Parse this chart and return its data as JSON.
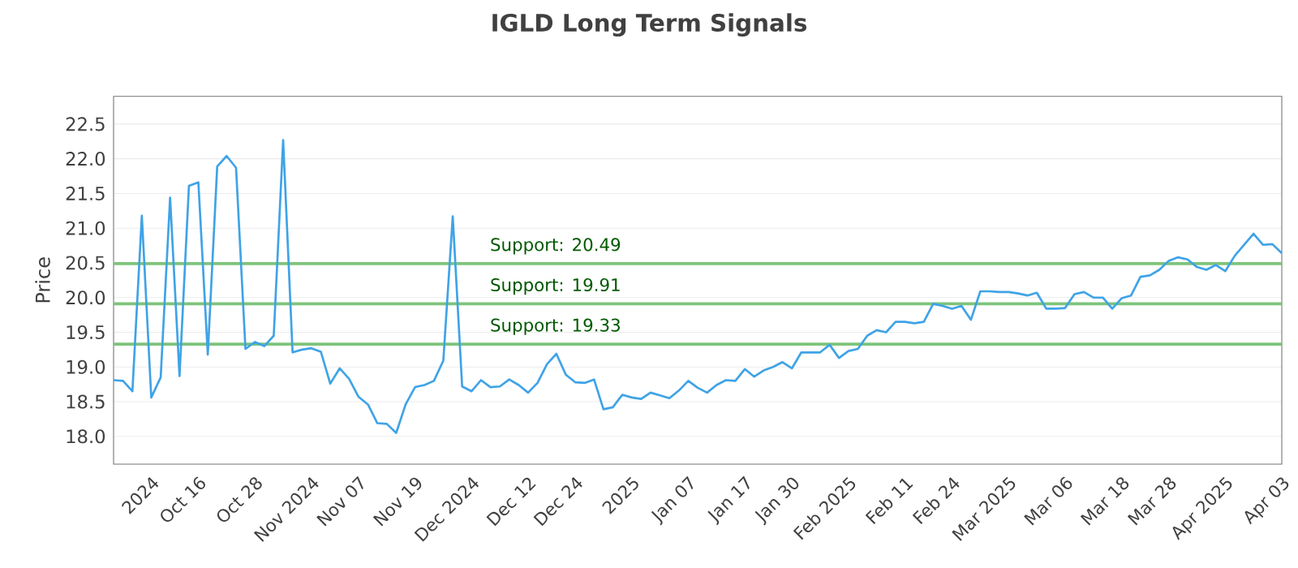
{
  "chart_data": {
    "type": "line",
    "title": "IGLD Long Term Signals",
    "ylabel": "Price",
    "categories": [
      null,
      null,
      null,
      null,
      "2024",
      null,
      null,
      null,
      null,
      "Oct 16",
      null,
      null,
      null,
      null,
      null,
      "Oct 28",
      null,
      null,
      null,
      null,
      null,
      "Nov 2024",
      null,
      null,
      null,
      null,
      "Nov 07",
      null,
      null,
      null,
      null,
      null,
      "Nov 19",
      null,
      null,
      null,
      null,
      null,
      "Dec 2024",
      null,
      null,
      null,
      null,
      null,
      "Dec 12",
      null,
      null,
      null,
      null,
      "Dec 24",
      null,
      null,
      null,
      null,
      null,
      "2025",
      null,
      null,
      null,
      null,
      null,
      "Jan 07",
      null,
      null,
      null,
      null,
      null,
      "Jan 17",
      null,
      null,
      null,
      null,
      "Jan 30",
      null,
      null,
      null,
      null,
      null,
      "Feb 2025",
      null,
      null,
      null,
      null,
      null,
      "Feb 11",
      null,
      null,
      null,
      null,
      "Feb 24",
      null,
      null,
      null,
      null,
      null,
      "Mar 2025",
      null,
      null,
      null,
      null,
      null,
      "Mar 06",
      null,
      null,
      null,
      null,
      null,
      "Mar 18",
      null,
      null,
      null,
      null,
      "Mar 28",
      null,
      null,
      null,
      null,
      null,
      "Apr 2025",
      null,
      null,
      null,
      null,
      null,
      "Apr 03"
    ],
    "series": [
      {
        "color": "#3fa3e6",
        "values": [
          18.81,
          18.8,
          18.65,
          21.18,
          18.56,
          18.85,
          21.44,
          18.87,
          21.61,
          21.66,
          19.18,
          21.89,
          22.04,
          21.87,
          19.26,
          19.36,
          19.3,
          19.45,
          22.27,
          19.21,
          19.25,
          19.27,
          19.22,
          18.76,
          18.98,
          18.83,
          18.57,
          18.46,
          18.19,
          18.18,
          18.05,
          18.46,
          18.71,
          18.74,
          18.8,
          19.09,
          21.17,
          18.72,
          18.65,
          18.81,
          18.71,
          18.72,
          18.82,
          18.74,
          18.63,
          18.77,
          19.04,
          19.19,
          18.89,
          18.78,
          18.77,
          18.82,
          18.39,
          18.42,
          18.6,
          18.56,
          18.54,
          18.63,
          18.59,
          18.55,
          18.66,
          18.8,
          18.7,
          18.63,
          18.74,
          18.81,
          18.8,
          18.97,
          18.86,
          18.95,
          19.0,
          19.07,
          18.98,
          19.21,
          19.21,
          19.21,
          19.32,
          19.13,
          19.23,
          19.26,
          19.45,
          19.53,
          19.5,
          19.65,
          19.65,
          19.63,
          19.65,
          19.91,
          19.88,
          19.84,
          19.88,
          19.68,
          20.09,
          20.09,
          20.08,
          20.08,
          20.06,
          20.03,
          20.07,
          19.84,
          19.84,
          19.85,
          20.05,
          20.08,
          20.0,
          20.0,
          19.84,
          19.99,
          20.03,
          20.3,
          20.32,
          20.4,
          20.53,
          20.58,
          20.55,
          20.44,
          20.4,
          20.47,
          20.38,
          20.6,
          20.76,
          20.92,
          20.76,
          20.77,
          20.64
        ]
      }
    ],
    "ylim": [
      17.6,
      22.9
    ],
    "yticks": [
      {
        "value": 18,
        "label": "18.0"
      },
      {
        "value": 18.5,
        "label": "18.5"
      },
      {
        "value": 19,
        "label": "19.0"
      },
      {
        "value": 19.5,
        "label": "19.5"
      },
      {
        "value": 20,
        "label": "20.0"
      },
      {
        "value": 20.5,
        "label": "20.5"
      },
      {
        "value": 21,
        "label": "21.0"
      },
      {
        "value": 21.5,
        "label": "21.5"
      },
      {
        "value": 22,
        "label": "22.0"
      },
      {
        "value": 22.5,
        "label": "22.5"
      }
    ],
    "ref_lines": [
      {
        "axis": "y",
        "value": 20.49,
        "label": "Support: 20.49",
        "color": "#7dc47a"
      },
      {
        "axis": "y",
        "value": 19.91,
        "label": "Support: 19.91",
        "color": "#7dc47a"
      },
      {
        "axis": "y",
        "value": 19.33,
        "label": "Support: 19.33",
        "color": "#7dc47a"
      }
    ],
    "grid": "y",
    "marker": "none",
    "line_style": "solid"
  }
}
